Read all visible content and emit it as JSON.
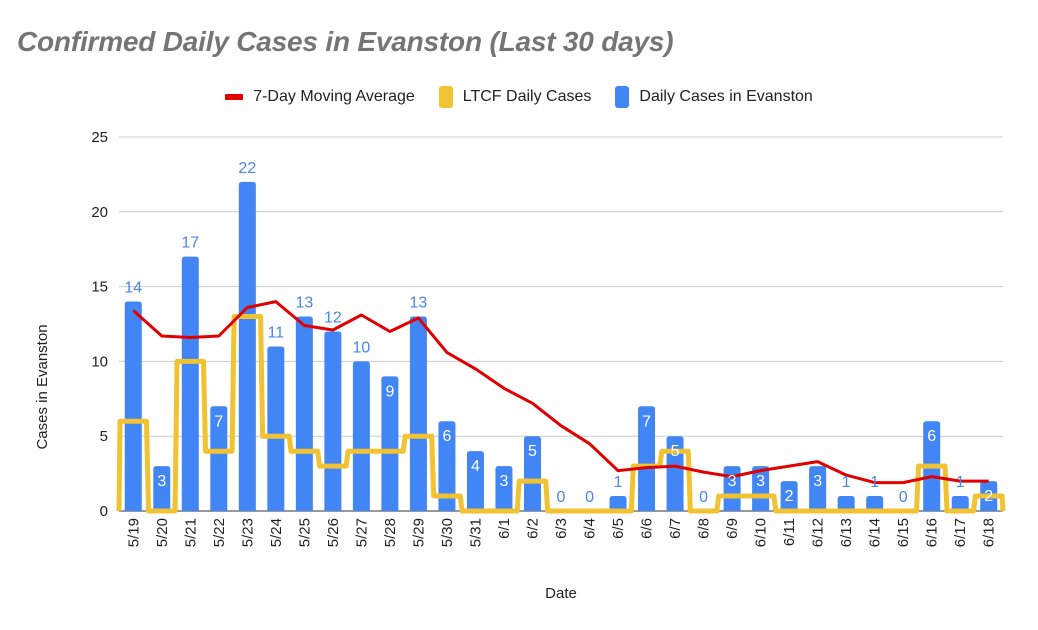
{
  "chart_data": {
    "type": "bar",
    "title": "Confirmed Daily Cases in Evanston (Last 30 days)",
    "xlabel": "Date",
    "ylabel": "Cases in Evanston",
    "ylim": [
      0,
      25
    ],
    "yticks": [
      0,
      5,
      10,
      15,
      20,
      25
    ],
    "grid": true,
    "legend_position": "top",
    "categories": [
      "5/19",
      "5/20",
      "5/21",
      "5/22",
      "5/23",
      "5/24",
      "5/25",
      "5/26",
      "5/27",
      "5/28",
      "5/29",
      "5/30",
      "5/31",
      "6/1",
      "6/2",
      "6/3",
      "6/4",
      "6/5",
      "6/6",
      "6/7",
      "6/8",
      "6/9",
      "6/10",
      "6/11",
      "6/12",
      "6/13",
      "6/14",
      "6/15",
      "6/16",
      "6/17",
      "6/18"
    ],
    "series": [
      {
        "name": "7-Day Moving Average",
        "type": "line",
        "color": "#e00000",
        "values": [
          13.4,
          11.7,
          11.6,
          11.7,
          13.6,
          14.0,
          12.4,
          12.1,
          13.1,
          12.0,
          12.9,
          10.6,
          9.5,
          8.2,
          7.2,
          5.7,
          4.5,
          2.7,
          2.9,
          3.0,
          2.6,
          2.3,
          2.7,
          3.0,
          3.3,
          2.4,
          1.9,
          1.9,
          2.3,
          2.0,
          2.0
        ]
      },
      {
        "name": "LTCF Daily Cases",
        "type": "stepped-area",
        "color": "#f1c232",
        "values": [
          6,
          0,
          10,
          4,
          13,
          5,
          4,
          3,
          4,
          4,
          5,
          1,
          0,
          0,
          2,
          0,
          0,
          0,
          3,
          4,
          0,
          1,
          1,
          0,
          0,
          0,
          0,
          0,
          3,
          0,
          1
        ]
      },
      {
        "name": "Daily Cases in Evanston",
        "type": "bar",
        "color": "#4285f4",
        "data_labels": true,
        "values": [
          14,
          3,
          17,
          7,
          22,
          11,
          13,
          12,
          10,
          9,
          13,
          6,
          4,
          3,
          5,
          0,
          0,
          1,
          7,
          5,
          0,
          3,
          3,
          2,
          3,
          1,
          1,
          0,
          6,
          1,
          2
        ]
      }
    ]
  },
  "colors": {
    "grid": "#cccccc",
    "title": "#757575",
    "label_outside": "#4a86e8",
    "label_inside": "#ffffff"
  }
}
